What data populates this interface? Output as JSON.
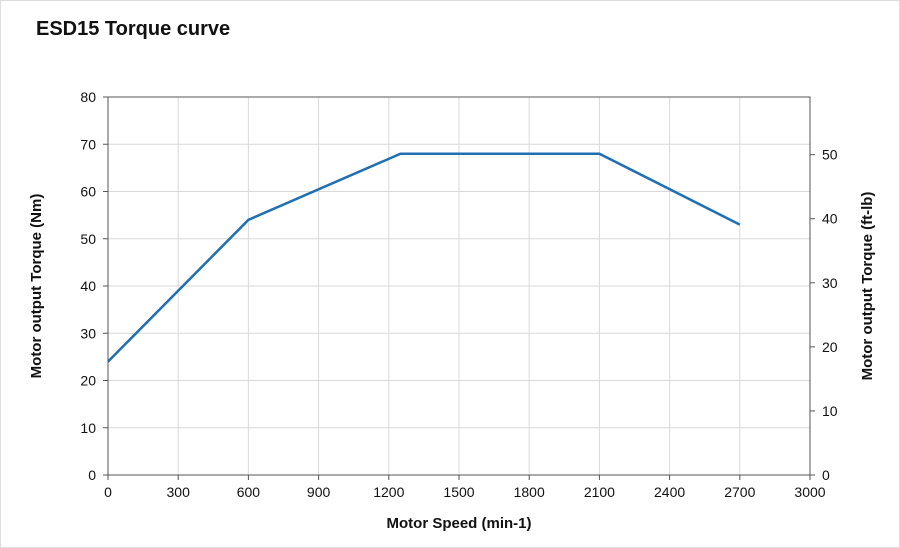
{
  "chart_data": {
    "type": "line",
    "title": "ESD15 Torque curve",
    "xlabel": "Motor Speed (min-1)",
    "ylabel": "Motor output Torque (Nm)",
    "y2label": "Motor output Torque (ft-lb)",
    "xlim": [
      0,
      3000
    ],
    "ylim": [
      0,
      80
    ],
    "y2lim": [
      0,
      59
    ],
    "xticks": [
      0,
      300,
      600,
      900,
      1200,
      1500,
      1800,
      2100,
      2400,
      2700,
      3000
    ],
    "yticks": [
      0,
      10,
      20,
      30,
      40,
      50,
      60,
      70,
      80
    ],
    "y2ticks": [
      0,
      10,
      20,
      30,
      40,
      50
    ],
    "grid": true,
    "series": [
      {
        "x": [
          0,
          600,
          1250,
          2100,
          2700
        ],
        "y": [
          24,
          54,
          68,
          68,
          53
        ],
        "color": "#1f6fb5"
      }
    ]
  }
}
